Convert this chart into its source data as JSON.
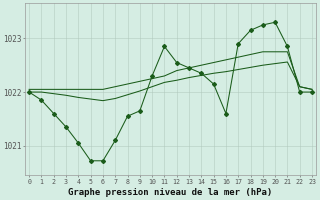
{
  "xlabel": "Graphe pression niveau de la mer (hPa)",
  "hours": [
    0,
    1,
    2,
    3,
    4,
    5,
    6,
    7,
    8,
    9,
    10,
    11,
    12,
    13,
    14,
    15,
    16,
    17,
    18,
    19,
    20,
    21,
    22,
    23
  ],
  "line_jagged": [
    1022.0,
    1021.85,
    1021.6,
    1021.35,
    1021.05,
    1020.72,
    1020.72,
    1021.1,
    1021.55,
    1021.65,
    1022.3,
    1022.85,
    1022.55,
    1022.45,
    1022.35,
    1022.15,
    1021.6,
    1022.9,
    1023.15,
    1023.25,
    1023.3,
    1022.85,
    1022.0,
    1022.0
  ],
  "line_smooth": [
    1022.0,
    1022.0,
    1021.97,
    1021.94,
    1021.9,
    1021.87,
    1021.84,
    1021.88,
    1021.95,
    1022.02,
    1022.1,
    1022.18,
    1022.22,
    1022.27,
    1022.31,
    1022.35,
    1022.38,
    1022.42,
    1022.46,
    1022.5,
    1022.53,
    1022.56,
    1022.1,
    1022.05
  ],
  "line_upper": [
    1022.05,
    1022.05,
    1022.05,
    1022.05,
    1022.05,
    1022.05,
    1022.05,
    1022.1,
    1022.15,
    1022.2,
    1022.25,
    1022.3,
    1022.4,
    1022.45,
    1022.5,
    1022.55,
    1022.6,
    1022.65,
    1022.7,
    1022.75,
    1022.75,
    1022.75,
    1022.1,
    1022.05
  ],
  "bg_color": "#d5ede3",
  "grid_color": "#b0c8bc",
  "line_color": "#1a5c1a",
  "ylim_min": 1020.45,
  "ylim_max": 1023.65,
  "yticks": [
    1021,
    1022,
    1023
  ],
  "ylabel_fontsize": 5.5,
  "xlabel_fontsize": 6.5,
  "xtick_fontsize": 4.8
}
